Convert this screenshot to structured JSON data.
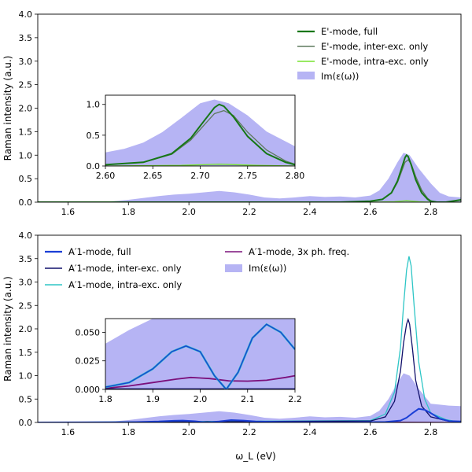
{
  "xaxis_label": "ω_L (eV)",
  "chart_data": [
    {
      "type": "line",
      "id": "top-main",
      "xlabel": "",
      "ylabel": "Raman intensity (a.u.)",
      "xlim": [
        1.5,
        2.9
      ],
      "ylim": [
        0,
        4.0
      ],
      "xticks": [
        "1.6",
        "1.8",
        "2.0",
        "2.2",
        "2.4",
        "2.6",
        "2.8"
      ],
      "yticks": [
        "0.0",
        "0.5",
        "1.0",
        "1.5",
        "2.0",
        "2.5",
        "3.0",
        "3.5",
        "4.0"
      ],
      "legend_position": "upper-right",
      "grid": false,
      "series": [
        {
          "name": "E'-mode, full",
          "color": "#167716",
          "width": 2.0,
          "x": [
            1.5,
            2.5,
            2.6,
            2.64,
            2.67,
            2.69,
            2.705,
            2.715,
            2.72,
            2.725,
            2.735,
            2.75,
            2.77,
            2.79,
            2.8,
            2.82,
            2.85,
            2.9
          ],
          "y": [
            0,
            0,
            0.02,
            0.06,
            0.2,
            0.45,
            0.75,
            0.95,
            1.0,
            0.97,
            0.8,
            0.48,
            0.2,
            0.06,
            0.02,
            0,
            0,
            0.05
          ]
        },
        {
          "name": "E'-mode, inter-exc. only",
          "color": "#5f7a5f",
          "width": 1.3,
          "x": [
            1.5,
            2.5,
            2.6,
            2.64,
            2.67,
            2.69,
            2.705,
            2.715,
            2.725,
            2.735,
            2.75,
            2.77,
            2.79,
            2.8,
            2.82,
            2.9
          ],
          "y": [
            0,
            0,
            0.02,
            0.06,
            0.19,
            0.42,
            0.68,
            0.85,
            0.9,
            0.82,
            0.55,
            0.26,
            0.08,
            0.03,
            0,
            0
          ]
        },
        {
          "name": "E'-mode, intra-exc. only",
          "color": "#77e22f",
          "width": 1.3,
          "x": [
            1.5,
            2.6,
            2.68,
            2.72,
            2.76,
            2.8,
            2.9
          ],
          "y": [
            0,
            0,
            0.01,
            0.03,
            0.01,
            0,
            0
          ]
        }
      ],
      "area": {
        "name": "Im(ε(ω))",
        "color": "#b6b4f4",
        "x": [
          1.5,
          1.6,
          1.7,
          1.75,
          1.8,
          1.85,
          1.9,
          1.95,
          2.0,
          2.05,
          2.1,
          2.15,
          2.2,
          2.25,
          2.3,
          2.35,
          2.4,
          2.45,
          2.5,
          2.55,
          2.6,
          2.63,
          2.66,
          2.69,
          2.71,
          2.73,
          2.76,
          2.8,
          2.83,
          2.86,
          2.9
        ],
        "y": [
          0,
          0,
          0,
          0.02,
          0.05,
          0.09,
          0.13,
          0.16,
          0.18,
          0.21,
          0.24,
          0.21,
          0.16,
          0.1,
          0.08,
          0.1,
          0.13,
          0.11,
          0.12,
          0.1,
          0.14,
          0.25,
          0.5,
          0.85,
          1.05,
          1.0,
          0.72,
          0.4,
          0.2,
          0.12,
          0.1
        ]
      }
    },
    {
      "type": "line",
      "id": "top-inset",
      "xlim": [
        2.6,
        2.8
      ],
      "ylim": [
        0,
        1.15
      ],
      "xticks": [
        "2.60",
        "2.65",
        "2.70",
        "2.75",
        "2.80"
      ],
      "yticks": [
        "0.0",
        "0.5",
        "1.0"
      ]
    },
    {
      "type": "line",
      "id": "bottom-main",
      "xlabel": "ω_L (eV)",
      "ylabel": "Raman intensity (a.u.)",
      "xlim": [
        1.5,
        2.9
      ],
      "ylim": [
        0,
        4.0
      ],
      "xticks": [
        "1.6",
        "1.8",
        "2.0",
        "2.2",
        "2.4",
        "2.6",
        "2.8"
      ],
      "yticks": [
        "0.0",
        "0.5",
        "1.0",
        "1.5",
        "2.0",
        "2.5",
        "3.0",
        "3.5",
        "4.0"
      ],
      "legend_position": "upper-left",
      "grid": false,
      "series": [
        {
          "name": "A′1-mode, full",
          "color": "#1a3fd6",
          "width": 2.0,
          "x": [
            1.5,
            1.8,
            1.9,
            1.95,
            1.98,
            2.02,
            2.06,
            2.1,
            2.14,
            2.18,
            2.22,
            2.3,
            2.5,
            2.65,
            2.7,
            2.72,
            2.74,
            2.76,
            2.78,
            2.8,
            2.83,
            2.86,
            2.9
          ],
          "y": [
            0,
            0.005,
            0.02,
            0.035,
            0.04,
            0.025,
            0,
            0.02,
            0.05,
            0.04,
            0.02,
            0.01,
            0,
            0.01,
            0.04,
            0.1,
            0.2,
            0.29,
            0.27,
            0.2,
            0.08,
            0.03,
            0.02
          ]
        },
        {
          "name": "A′1-mode, inter-exc. only",
          "color": "#10106b",
          "width": 1.3,
          "x": [
            1.5,
            2.6,
            2.65,
            2.68,
            2.7,
            2.71,
            2.72,
            2.725,
            2.73,
            2.74,
            2.75,
            2.77,
            2.8,
            2.85,
            2.9
          ],
          "y": [
            0,
            0.03,
            0.12,
            0.45,
            1.1,
            1.7,
            2.1,
            2.2,
            2.1,
            1.55,
            0.9,
            0.35,
            0.12,
            0.04,
            0
          ]
        },
        {
          "name": "A′1-mode, intra-exc. only",
          "color": "#2ec6c6",
          "width": 1.3,
          "x": [
            1.5,
            2.6,
            2.65,
            2.68,
            2.7,
            2.71,
            2.72,
            2.728,
            2.735,
            2.745,
            2.76,
            2.78,
            2.8,
            2.85,
            2.9
          ],
          "y": [
            0,
            0.04,
            0.18,
            0.65,
            1.6,
            2.5,
            3.25,
            3.55,
            3.35,
            2.5,
            1.3,
            0.5,
            0.2,
            0.06,
            0
          ]
        },
        {
          "name": "A′1-mode, 3x ph. freq.",
          "color": "#7b107b",
          "width": 1.3,
          "x": [
            1.5,
            2.6,
            2.7,
            2.8,
            2.9
          ],
          "y": [
            0,
            0,
            0.005,
            0.003,
            0
          ]
        }
      ],
      "area": {
        "name": "Im(ε(ω))",
        "color": "#b6b4f4",
        "x": [
          1.5,
          1.6,
          1.7,
          1.75,
          1.8,
          1.85,
          1.9,
          1.95,
          2.0,
          2.05,
          2.1,
          2.15,
          2.2,
          2.25,
          2.3,
          2.35,
          2.4,
          2.45,
          2.5,
          2.55,
          2.6,
          2.63,
          2.66,
          2.69,
          2.71,
          2.73,
          2.76,
          2.8,
          2.83,
          2.86,
          2.9
        ],
        "y": [
          0,
          0,
          0,
          0.02,
          0.05,
          0.09,
          0.13,
          0.16,
          0.18,
          0.21,
          0.24,
          0.21,
          0.16,
          0.1,
          0.08,
          0.1,
          0.13,
          0.11,
          0.12,
          0.1,
          0.14,
          0.25,
          0.5,
          0.85,
          1.05,
          1.0,
          0.72,
          0.4,
          0.38,
          0.36,
          0.35
        ]
      }
    },
    {
      "type": "line",
      "id": "bottom-inset",
      "xlim": [
        1.8,
        2.2
      ],
      "ylim": [
        0,
        0.062
      ],
      "xticks": [
        "1.8",
        "1.9",
        "2.0",
        "2.1",
        "2.2"
      ],
      "yticks": [
        "0.000",
        "0.025",
        "0.050"
      ],
      "series_3x": {
        "x": [
          1.8,
          1.85,
          1.9,
          1.95,
          1.98,
          2.02,
          2.06,
          2.1,
          2.14,
          2.18,
          2.2
        ],
        "y": [
          0.001,
          0.003,
          0.006,
          0.009,
          0.0105,
          0.0095,
          0.0075,
          0.0072,
          0.008,
          0.0105,
          0.012
        ]
      },
      "series_full": {
        "x": [
          1.8,
          1.85,
          1.9,
          1.94,
          1.97,
          2.0,
          2.03,
          2.055,
          2.08,
          2.11,
          2.14,
          2.17,
          2.2
        ],
        "y": [
          0.002,
          0.006,
          0.018,
          0.033,
          0.038,
          0.033,
          0.012,
          0.0,
          0.015,
          0.045,
          0.057,
          0.05,
          0.035
        ]
      },
      "area": {
        "x": [
          1.8,
          1.85,
          1.9,
          1.95,
          2.0,
          2.05,
          2.1,
          2.15,
          2.2
        ],
        "y": [
          0.04,
          0.052,
          0.062,
          0.062,
          0.062,
          0.062,
          0.062,
          0.062,
          0.062
        ]
      }
    }
  ]
}
